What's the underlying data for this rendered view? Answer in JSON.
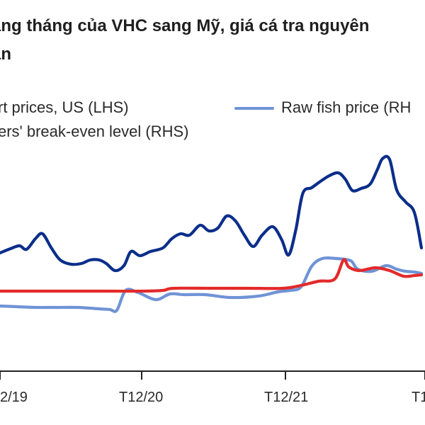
{
  "title": {
    "line1": "àng tháng của VHC sang Mỹ, giá cá tra nguyên",
    "line2": "ân"
  },
  "legend": [
    {
      "text": "rt prices, US (LHS)"
    },
    {
      "text": "Raw fish price (RH"
    },
    {
      "text": "ers' break-even level (RHS)"
    }
  ],
  "colors": {
    "export_prices": "#0b2e8a",
    "raw_fish_price": "#6f93d6",
    "break_even": "#e32a2a",
    "axis": "#222222"
  },
  "chart_data": {
    "type": "line",
    "x_tick_labels": [
      "2/19",
      "T12/20",
      "T12/21",
      "T1"
    ],
    "series": [
      {
        "name": "rt prices, US (LHS)",
        "points": [
          [
            0,
            357
          ],
          [
            0.3,
            351
          ],
          [
            0.55,
            347
          ],
          [
            0.75,
            352
          ],
          [
            1.0,
            337
          ],
          [
            1.2,
            330
          ],
          [
            1.45,
            350
          ],
          [
            1.7,
            367
          ],
          [
            2.0,
            373
          ],
          [
            2.3,
            372
          ],
          [
            2.55,
            367
          ],
          [
            2.8,
            367
          ],
          [
            3.0,
            372
          ],
          [
            3.25,
            382
          ],
          [
            3.5,
            375
          ],
          [
            3.7,
            355
          ],
          [
            3.95,
            361
          ],
          [
            4.25,
            355
          ],
          [
            4.6,
            350
          ],
          [
            4.85,
            337
          ],
          [
            5.1,
            330
          ],
          [
            5.35,
            332
          ],
          [
            5.65,
            318
          ],
          [
            5.9,
            326
          ],
          [
            6.15,
            322
          ],
          [
            6.4,
            305
          ],
          [
            6.65,
            312
          ],
          [
            6.9,
            332
          ],
          [
            7.15,
            348
          ],
          [
            7.4,
            332
          ],
          [
            7.7,
            320
          ],
          [
            7.95,
            338
          ],
          [
            8.15,
            360
          ],
          [
            8.35,
            325
          ],
          [
            8.55,
            273
          ],
          [
            8.8,
            265
          ],
          [
            9.05,
            256
          ],
          [
            9.3,
            248
          ],
          [
            9.55,
            244
          ],
          [
            9.75,
            253
          ],
          [
            9.95,
            269
          ],
          [
            10.2,
            266
          ],
          [
            10.45,
            260
          ],
          [
            10.65,
            240
          ],
          [
            10.8,
            224
          ],
          [
            11.0,
            225
          ],
          [
            11.2,
            268
          ],
          [
            11.45,
            285
          ],
          [
            11.7,
            300
          ],
          [
            11.9,
            350
          ]
        ]
      },
      {
        "name": "Raw fish price (RH",
        "points": [
          [
            0,
            432
          ],
          [
            0.5,
            433
          ],
          [
            1.0,
            434
          ],
          [
            1.6,
            434
          ],
          [
            2.2,
            434
          ],
          [
            2.8,
            436
          ],
          [
            3.1,
            437
          ],
          [
            3.3,
            438
          ],
          [
            3.55,
            410
          ],
          [
            3.9,
            413
          ],
          [
            4.4,
            423
          ],
          [
            4.8,
            415
          ],
          [
            5.2,
            416
          ],
          [
            5.8,
            416
          ],
          [
            6.5,
            420
          ],
          [
            7.3,
            418
          ],
          [
            7.85,
            412
          ],
          [
            8.2,
            410
          ],
          [
            8.5,
            405
          ],
          [
            8.8,
            376
          ],
          [
            9.1,
            365
          ],
          [
            9.5,
            365
          ],
          [
            9.9,
            368
          ],
          [
            10.1,
            380
          ],
          [
            10.5,
            383
          ],
          [
            10.9,
            375
          ],
          [
            11.2,
            380
          ],
          [
            11.45,
            383
          ],
          [
            11.7,
            384
          ],
          [
            11.9,
            386
          ]
        ]
      },
      {
        "name": "ers' break-even level (RHS)",
        "points": [
          [
            0,
            411
          ],
          [
            1.5,
            411
          ],
          [
            3.0,
            411
          ],
          [
            4.0,
            411
          ],
          [
            4.6,
            410
          ],
          [
            4.9,
            407
          ],
          [
            6.0,
            407
          ],
          [
            7.0,
            407
          ],
          [
            8.0,
            407
          ],
          [
            8.5,
            403
          ],
          [
            9.0,
            397
          ],
          [
            9.45,
            394
          ],
          [
            9.7,
            367
          ],
          [
            9.85,
            377
          ],
          [
            10.15,
            382
          ],
          [
            10.6,
            378
          ],
          [
            11.0,
            382
          ],
          [
            11.4,
            390
          ],
          [
            11.7,
            389
          ],
          [
            11.9,
            388
          ]
        ]
      }
    ]
  }
}
